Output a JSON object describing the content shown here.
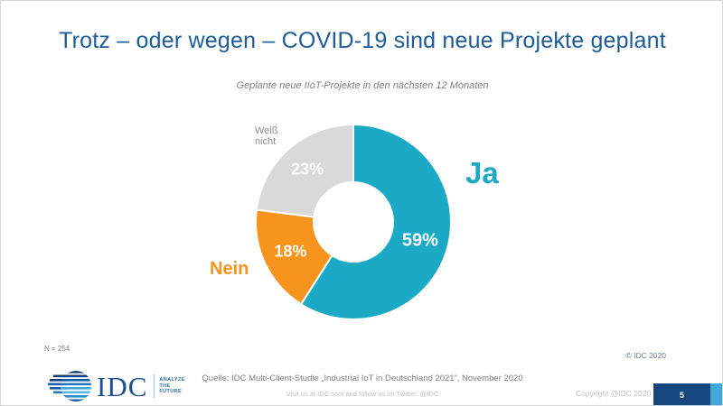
{
  "slide": {
    "title": "Trotz – oder wegen – COVID-19 sind neue Projekte geplant",
    "subtitle": "Geplante neue IIoT-Projekte in den nächsten 12 Monaten",
    "sample_note": "N = 254",
    "copyright_top": "© IDC 2020",
    "source_line": "Quelle: IDC Multi-Client-Studie „Industrial IoT in Deutschland 2021“, November 2020",
    "visit_line": "Visit us at IDC.com and follow us on Twitter: @IDC",
    "copyright_bottom": "Copyright @IDC 2020",
    "page_number": "5"
  },
  "logo": {
    "word": "IDC",
    "tagline_line1": "ANALYZE",
    "tagline_line2": "THE",
    "tagline_line3": "FUTURE"
  },
  "colors": {
    "title_blue": "#1e5c99",
    "teal": "#1ba9c6",
    "orange": "#f7941e",
    "gray_slice": "#d9d9d9",
    "navy": "#17477e",
    "accent_light_blue": "#41a8dc"
  },
  "chart_data": {
    "type": "pie",
    "donut": true,
    "title": "Geplante neue IIoT-Projekte in den nächsten 12 Monaten",
    "start_angle_deg": 0,
    "direction": "clockwise",
    "legend_position": "around-chart",
    "slices": [
      {
        "label": "Ja",
        "value": 59,
        "value_label": "59%",
        "color": "#1ba9c6"
      },
      {
        "label": "Nein",
        "value": 18,
        "value_label": "18%",
        "color": "#f7941e"
      },
      {
        "label": "Weiß nicht",
        "value": 23,
        "value_label": "23%",
        "color": "#d9d9d9"
      }
    ]
  }
}
